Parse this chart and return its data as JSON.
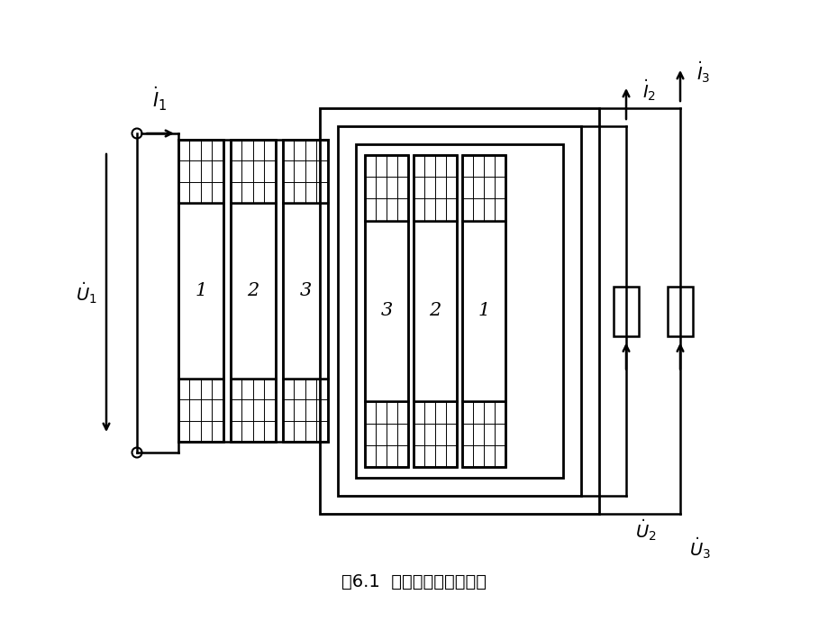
{
  "title": "图6.1  三绕组变压器示意图",
  "bg_color": "#ffffff",
  "line_color": "#000000",
  "fig_width": 9.2,
  "fig_height": 6.9,
  "dpi": 100
}
